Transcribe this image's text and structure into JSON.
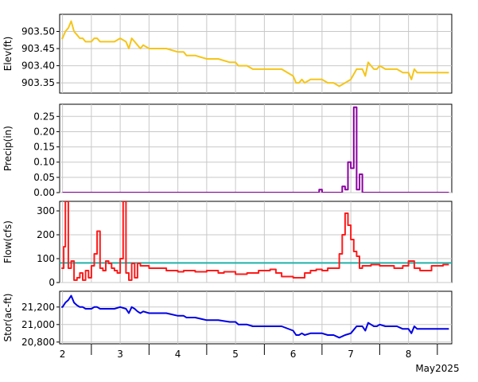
{
  "chart_data": [
    {
      "type": "line",
      "ylabel": "Elev(ft)",
      "color": "#f5c518",
      "ylim": [
        903.32,
        903.55
      ],
      "yticks": [
        903.35,
        903.4,
        903.45,
        903.5
      ],
      "ytick_labels": [
        "903.35",
        "903.40",
        "903.45",
        "903.50"
      ],
      "x": [
        1.98,
        2.0,
        2.05,
        2.1,
        2.15,
        2.2,
        2.25,
        2.3,
        2.35,
        2.4,
        2.45,
        2.5,
        2.55,
        2.6,
        2.65,
        2.7,
        2.75,
        2.8,
        2.9,
        3.0,
        3.1,
        3.15,
        3.2,
        3.25,
        3.3,
        3.35,
        3.4,
        3.5,
        3.6,
        3.8,
        4.0,
        4.1,
        4.15,
        4.2,
        4.3,
        4.5,
        4.6,
        4.7,
        4.9,
        5.0,
        5.05,
        5.1,
        5.2,
        5.3,
        5.5,
        5.8,
        6.0,
        6.05,
        6.1,
        6.15,
        6.2,
        6.3,
        6.5,
        6.6,
        6.7,
        6.8,
        6.9,
        7.0,
        7.1,
        7.2,
        7.25,
        7.3,
        7.35,
        7.4,
        7.45,
        7.5,
        7.6,
        7.7,
        7.8,
        7.9,
        8.0,
        8.05,
        8.1,
        8.15,
        8.3,
        8.5,
        8.7
      ],
      "y": [
        903.48,
        903.48,
        903.5,
        903.51,
        903.53,
        903.5,
        903.49,
        903.48,
        903.48,
        903.47,
        903.47,
        903.47,
        903.48,
        903.48,
        903.47,
        903.47,
        903.47,
        903.47,
        903.47,
        903.48,
        903.47,
        903.45,
        903.48,
        903.47,
        903.46,
        903.45,
        903.46,
        903.45,
        903.45,
        903.45,
        903.44,
        903.44,
        903.43,
        903.43,
        903.43,
        903.42,
        903.42,
        903.42,
        903.41,
        903.41,
        903.4,
        903.4,
        903.4,
        903.39,
        903.39,
        903.39,
        903.37,
        903.35,
        903.35,
        903.36,
        903.35,
        903.36,
        903.36,
        903.35,
        903.35,
        903.34,
        903.35,
        903.36,
        903.39,
        903.39,
        903.37,
        903.41,
        903.4,
        903.39,
        903.39,
        903.4,
        903.39,
        903.39,
        903.39,
        903.38,
        903.38,
        903.36,
        903.39,
        903.38,
        903.38,
        903.38,
        903.38
      ],
      "step": false
    },
    {
      "type": "bar",
      "ylabel": "Precip(in)",
      "color": "#8b00a0",
      "ylim": [
        0,
        0.29
      ],
      "yticks": [
        0,
        0.05,
        0.1,
        0.15,
        0.2,
        0.25
      ],
      "ytick_labels": [
        "0.00",
        "0.05",
        "0.10",
        "0.15",
        "0.20",
        "0.25"
      ],
      "x": [
        2.0,
        6.45,
        6.5,
        6.85,
        6.9,
        6.95,
        7.0,
        7.05,
        7.1,
        7.15,
        7.2,
        7.25,
        7.3,
        8.7
      ],
      "y": [
        0,
        0.01,
        0,
        0.02,
        0.01,
        0.1,
        0.08,
        0.28,
        0.01,
        0.06,
        0,
        0,
        0,
        0
      ],
      "step": true
    },
    {
      "type": "line",
      "ylabel": "Flow(cfs)",
      "color": "#ff1a1a",
      "ref_color": "#20b2aa",
      "ref_value": 82,
      "ylim": [
        0,
        340
      ],
      "yticks": [
        0,
        100,
        200,
        300
      ],
      "ytick_labels": [
        "0",
        "100",
        "200",
        "300"
      ],
      "x": [
        1.98,
        2.02,
        2.05,
        2.1,
        2.15,
        2.2,
        2.25,
        2.3,
        2.35,
        2.4,
        2.45,
        2.5,
        2.55,
        2.6,
        2.65,
        2.7,
        2.75,
        2.8,
        2.85,
        2.9,
        2.95,
        3.0,
        3.05,
        3.1,
        3.15,
        3.2,
        3.25,
        3.3,
        3.35,
        3.4,
        3.5,
        3.6,
        3.8,
        4.0,
        4.1,
        4.3,
        4.5,
        4.7,
        4.8,
        5.0,
        5.2,
        5.4,
        5.6,
        5.7,
        5.8,
        6.0,
        6.2,
        6.3,
        6.4,
        6.5,
        6.6,
        6.8,
        6.85,
        6.9,
        6.95,
        7.0,
        7.05,
        7.1,
        7.15,
        7.2,
        7.25,
        7.35,
        7.5,
        7.6,
        7.75,
        7.9,
        8.0,
        8.1,
        8.2,
        8.4,
        8.6,
        8.7
      ],
      "y": [
        60,
        150,
        340,
        60,
        90,
        10,
        20,
        40,
        10,
        50,
        20,
        70,
        120,
        215,
        60,
        50,
        90,
        80,
        60,
        50,
        40,
        100,
        340,
        40,
        10,
        80,
        20,
        80,
        70,
        70,
        60,
        60,
        50,
        45,
        50,
        45,
        50,
        40,
        45,
        35,
        40,
        50,
        55,
        40,
        25,
        20,
        40,
        50,
        55,
        50,
        60,
        120,
        200,
        290,
        240,
        180,
        130,
        110,
        60,
        70,
        70,
        75,
        70,
        70,
        60,
        70,
        90,
        60,
        50,
        70,
        75,
        75
      ],
      "step": true
    },
    {
      "type": "line",
      "ylabel": "Stor(ac-ft)",
      "color": "#0000e6",
      "ylim": [
        20780,
        21380
      ],
      "yticks": [
        20800,
        21000,
        21200
      ],
      "ytick_labels": [
        "20,800",
        "21,000",
        "21,200"
      ],
      "x": [
        1.98,
        2.0,
        2.05,
        2.1,
        2.15,
        2.2,
        2.25,
        2.3,
        2.35,
        2.4,
        2.45,
        2.5,
        2.55,
        2.6,
        2.65,
        2.7,
        2.75,
        2.8,
        2.9,
        3.0,
        3.1,
        3.15,
        3.2,
        3.25,
        3.3,
        3.35,
        3.4,
        3.5,
        3.6,
        3.8,
        4.0,
        4.1,
        4.15,
        4.2,
        4.3,
        4.5,
        4.6,
        4.7,
        4.9,
        5.0,
        5.05,
        5.1,
        5.2,
        5.3,
        5.5,
        5.8,
        6.0,
        6.05,
        6.1,
        6.15,
        6.2,
        6.3,
        6.5,
        6.6,
        6.7,
        6.8,
        6.9,
        7.0,
        7.1,
        7.2,
        7.25,
        7.3,
        7.35,
        7.4,
        7.45,
        7.5,
        7.6,
        7.7,
        7.8,
        7.9,
        8.0,
        8.05,
        8.1,
        8.15,
        8.3,
        8.5,
        8.7
      ],
      "y": [
        21200,
        21200,
        21250,
        21280,
        21330,
        21250,
        21220,
        21200,
        21200,
        21180,
        21180,
        21180,
        21200,
        21200,
        21180,
        21180,
        21180,
        21180,
        21180,
        21200,
        21180,
        21130,
        21200,
        21180,
        21150,
        21130,
        21150,
        21130,
        21130,
        21130,
        21100,
        21100,
        21080,
        21080,
        21080,
        21050,
        21050,
        21050,
        21030,
        21030,
        21000,
        21000,
        21000,
        20980,
        20980,
        20980,
        20930,
        20880,
        20880,
        20900,
        20880,
        20900,
        20900,
        20880,
        20880,
        20850,
        20880,
        20900,
        20980,
        20980,
        20930,
        21020,
        21000,
        20980,
        20980,
        21000,
        20980,
        20980,
        20980,
        20950,
        20950,
        20900,
        20980,
        20950,
        20950,
        20950,
        20950
      ],
      "step": false
    }
  ],
  "x_axis": {
    "xlim": [
      1.95,
      8.75
    ],
    "day_ticks": [
      2,
      3,
      4,
      5,
      6,
      7,
      8
    ],
    "day_labels": [
      "2",
      "3",
      "4",
      "5",
      "6",
      "7",
      "8"
    ],
    "half_ticks": [
      2.5,
      3.5,
      4.5,
      5.5,
      6.5,
      7.5,
      8.5
    ],
    "month_label": "May2025"
  }
}
